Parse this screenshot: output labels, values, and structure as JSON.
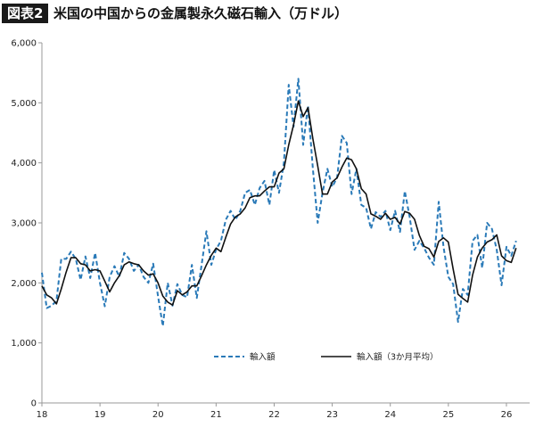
{
  "header": {
    "badge": "図表2",
    "title": "米国の中国からの金属製永久磁石輸入（万ドル）"
  },
  "colors": {
    "dashed": "#2a7ab8",
    "solid": "#111111",
    "axis": "#999999"
  },
  "chart_data": {
    "type": "line",
    "title": "米国の中国からの金属製永久磁石輸入（万ドル）",
    "xlabel": "",
    "ylabel": "",
    "xlim": [
      18,
      26.4
    ],
    "ylim": [
      0,
      6000
    ],
    "yticks": [
      0,
      1000,
      2000,
      3000,
      4000,
      5000,
      6000
    ],
    "ytick_labels": [
      "0",
      "1,000",
      "2,000",
      "3,000",
      "4,000",
      "5,000",
      "6,000"
    ],
    "xticks": [
      18,
      19,
      20,
      21,
      22,
      23,
      24,
      25,
      26
    ],
    "xtick_labels": [
      "18",
      "19",
      "20",
      "21",
      "22",
      "23",
      "24",
      "25",
      "26"
    ],
    "grid": false,
    "legend": "bottom-center",
    "series": [
      {
        "name": "輸入額",
        "style": "dashed",
        "values": [
          [
            18.0,
            2170
          ],
          [
            18.083,
            1580
          ],
          [
            18.167,
            1620
          ],
          [
            18.25,
            1700
          ],
          [
            18.333,
            2400
          ],
          [
            18.417,
            2400
          ],
          [
            18.5,
            2520
          ],
          [
            18.583,
            2400
          ],
          [
            18.667,
            2050
          ],
          [
            18.75,
            2440
          ],
          [
            18.833,
            2080
          ],
          [
            18.917,
            2500
          ],
          [
            19.0,
            2000
          ],
          [
            19.083,
            1610
          ],
          [
            19.167,
            2100
          ],
          [
            19.25,
            2280
          ],
          [
            19.333,
            2100
          ],
          [
            19.417,
            2500
          ],
          [
            19.5,
            2400
          ],
          [
            19.583,
            2200
          ],
          [
            19.667,
            2300
          ],
          [
            19.75,
            2100
          ],
          [
            19.833,
            2000
          ],
          [
            19.917,
            2320
          ],
          [
            20.0,
            1780
          ],
          [
            20.083,
            1280
          ],
          [
            20.167,
            2000
          ],
          [
            20.25,
            1620
          ],
          [
            20.333,
            1980
          ],
          [
            20.417,
            1800
          ],
          [
            20.5,
            1760
          ],
          [
            20.583,
            2300
          ],
          [
            20.667,
            1750
          ],
          [
            20.75,
            2300
          ],
          [
            20.833,
            2860
          ],
          [
            20.917,
            2300
          ],
          [
            21.0,
            2560
          ],
          [
            21.083,
            2700
          ],
          [
            21.167,
            3050
          ],
          [
            21.25,
            3200
          ],
          [
            21.333,
            3050
          ],
          [
            21.417,
            3200
          ],
          [
            21.5,
            3500
          ],
          [
            21.583,
            3550
          ],
          [
            21.667,
            3300
          ],
          [
            21.75,
            3580
          ],
          [
            21.833,
            3700
          ],
          [
            21.917,
            3300
          ],
          [
            22.0,
            3880
          ],
          [
            22.083,
            3500
          ],
          [
            22.167,
            4000
          ],
          [
            22.25,
            5300
          ],
          [
            22.333,
            4600
          ],
          [
            22.417,
            5400
          ],
          [
            22.5,
            4300
          ],
          [
            22.583,
            4950
          ],
          [
            22.667,
            3900
          ],
          [
            22.75,
            3000
          ],
          [
            22.833,
            3500
          ],
          [
            22.917,
            3900
          ],
          [
            23.0,
            3600
          ],
          [
            23.083,
            3750
          ],
          [
            23.167,
            4450
          ],
          [
            23.25,
            4330
          ],
          [
            23.333,
            3480
          ],
          [
            23.417,
            3900
          ],
          [
            23.5,
            3300
          ],
          [
            23.583,
            3250
          ],
          [
            23.667,
            2900
          ],
          [
            23.75,
            3180
          ],
          [
            23.833,
            3100
          ],
          [
            23.917,
            3200
          ],
          [
            24.0,
            2880
          ],
          [
            24.083,
            3200
          ],
          [
            24.167,
            2850
          ],
          [
            24.25,
            3530
          ],
          [
            24.333,
            3100
          ],
          [
            24.417,
            2550
          ],
          [
            24.5,
            2700
          ],
          [
            24.583,
            2580
          ],
          [
            24.667,
            2420
          ],
          [
            24.75,
            2300
          ],
          [
            24.833,
            3350
          ],
          [
            24.917,
            2600
          ],
          [
            25.0,
            2100
          ],
          [
            25.083,
            1980
          ],
          [
            25.167,
            1350
          ],
          [
            25.25,
            1900
          ],
          [
            25.333,
            1800
          ],
          [
            25.417,
            2700
          ],
          [
            25.5,
            2800
          ],
          [
            25.583,
            2250
          ],
          [
            25.667,
            3000
          ],
          [
            25.75,
            2900
          ],
          [
            25.833,
            2550
          ],
          [
            25.917,
            1960
          ],
          [
            26.0,
            2600
          ],
          [
            26.083,
            2450
          ],
          [
            26.167,
            2700
          ]
        ]
      },
      {
        "name": "輸入額（3か月平均）",
        "style": "solid",
        "values": [
          [
            18.0,
            1950
          ],
          [
            18.083,
            1800
          ],
          [
            18.167,
            1750
          ],
          [
            18.25,
            1650
          ],
          [
            18.333,
            1900
          ],
          [
            18.417,
            2180
          ],
          [
            18.5,
            2420
          ],
          [
            18.583,
            2420
          ],
          [
            18.667,
            2320
          ],
          [
            18.75,
            2300
          ],
          [
            18.833,
            2200
          ],
          [
            18.917,
            2220
          ],
          [
            19.0,
            2200
          ],
          [
            19.083,
            2030
          ],
          [
            19.167,
            1850
          ],
          [
            19.25,
            2000
          ],
          [
            19.333,
            2120
          ],
          [
            19.417,
            2300
          ],
          [
            19.5,
            2350
          ],
          [
            19.583,
            2320
          ],
          [
            19.667,
            2300
          ],
          [
            19.75,
            2200
          ],
          [
            19.833,
            2130
          ],
          [
            19.917,
            2150
          ],
          [
            20.0,
            2000
          ],
          [
            20.083,
            1780
          ],
          [
            20.167,
            1680
          ],
          [
            20.25,
            1630
          ],
          [
            20.333,
            1870
          ],
          [
            20.417,
            1800
          ],
          [
            20.5,
            1850
          ],
          [
            20.583,
            1950
          ],
          [
            20.667,
            1950
          ],
          [
            20.75,
            2120
          ],
          [
            20.833,
            2300
          ],
          [
            20.917,
            2460
          ],
          [
            21.0,
            2580
          ],
          [
            21.083,
            2520
          ],
          [
            21.167,
            2760
          ],
          [
            21.25,
            2980
          ],
          [
            21.333,
            3100
          ],
          [
            21.417,
            3150
          ],
          [
            21.5,
            3250
          ],
          [
            21.583,
            3420
          ],
          [
            21.667,
            3450
          ],
          [
            21.75,
            3450
          ],
          [
            21.833,
            3530
          ],
          [
            21.917,
            3600
          ],
          [
            22.0,
            3600
          ],
          [
            22.083,
            3830
          ],
          [
            22.167,
            3900
          ],
          [
            22.25,
            4300
          ],
          [
            22.333,
            4630
          ],
          [
            22.417,
            5030
          ],
          [
            22.5,
            4770
          ],
          [
            22.583,
            4920
          ],
          [
            22.667,
            4400
          ],
          [
            22.75,
            3950
          ],
          [
            22.833,
            3480
          ],
          [
            22.917,
            3480
          ],
          [
            23.0,
            3680
          ],
          [
            23.083,
            3750
          ],
          [
            23.167,
            3930
          ],
          [
            23.25,
            4080
          ],
          [
            23.333,
            4050
          ],
          [
            23.417,
            3900
          ],
          [
            23.5,
            3570
          ],
          [
            23.583,
            3480
          ],
          [
            23.667,
            3150
          ],
          [
            23.75,
            3110
          ],
          [
            23.833,
            3060
          ],
          [
            23.917,
            3160
          ],
          [
            24.0,
            3060
          ],
          [
            24.083,
            3090
          ],
          [
            24.167,
            2980
          ],
          [
            24.25,
            3190
          ],
          [
            24.333,
            3160
          ],
          [
            24.417,
            3060
          ],
          [
            24.5,
            2790
          ],
          [
            24.583,
            2610
          ],
          [
            24.667,
            2570
          ],
          [
            24.75,
            2430
          ],
          [
            24.833,
            2690
          ],
          [
            24.917,
            2750
          ],
          [
            25.0,
            2680
          ],
          [
            25.083,
            2230
          ],
          [
            25.167,
            1810
          ],
          [
            25.25,
            1740
          ],
          [
            25.333,
            1680
          ],
          [
            25.417,
            2130
          ],
          [
            25.5,
            2430
          ],
          [
            25.583,
            2580
          ],
          [
            25.667,
            2680
          ],
          [
            25.75,
            2720
          ],
          [
            25.833,
            2800
          ],
          [
            25.917,
            2450
          ],
          [
            26.0,
            2370
          ],
          [
            26.083,
            2340
          ],
          [
            26.167,
            2580
          ]
        ]
      }
    ]
  }
}
